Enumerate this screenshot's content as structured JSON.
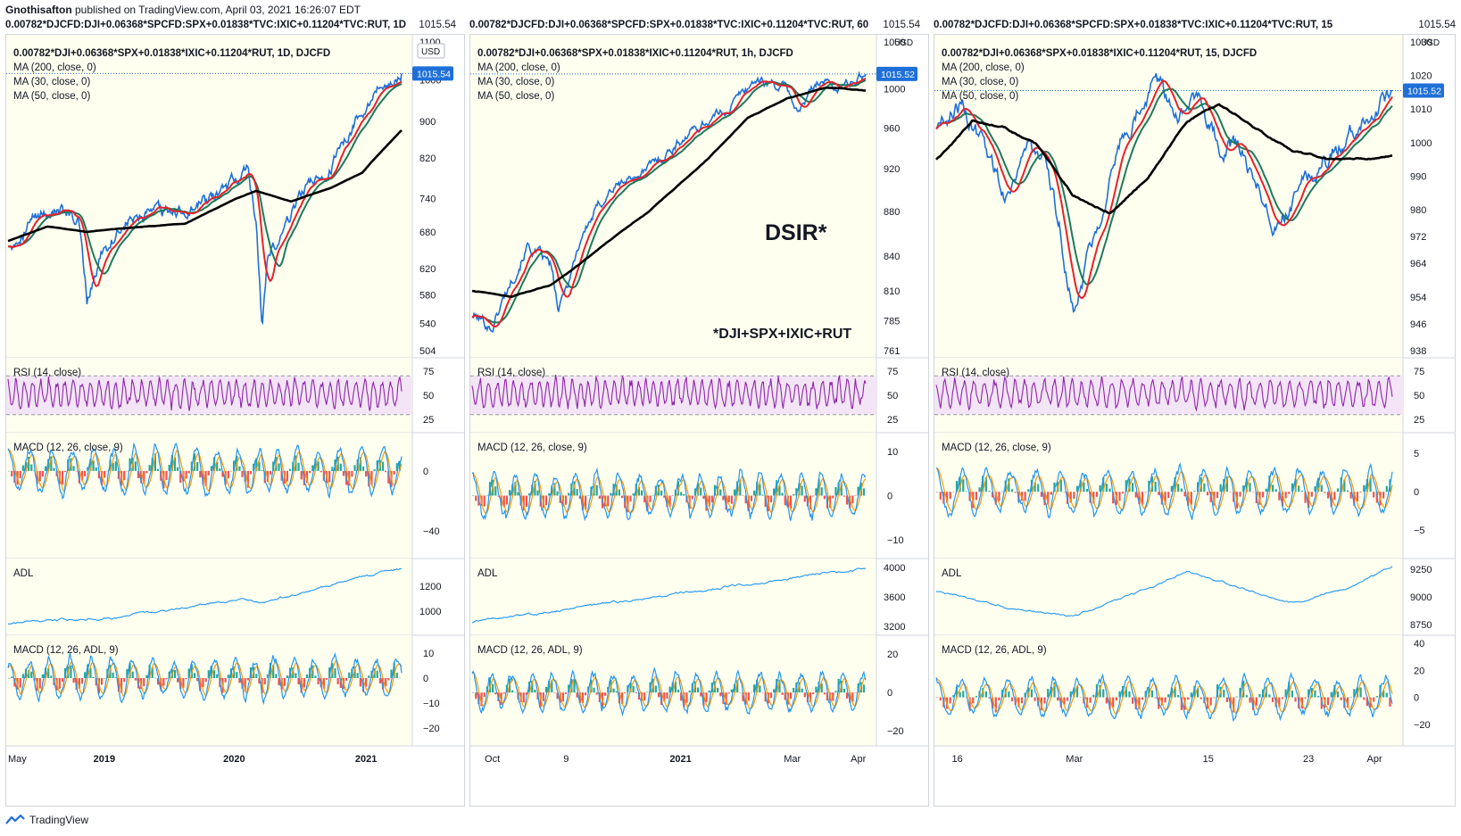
{
  "publisher": {
    "author": "Gnothisafton",
    "text": "published on TradingView.com, April 03, 2021 16:26:07 EDT"
  },
  "footer": {
    "brand": "TradingView"
  },
  "colors": {
    "pane_bg": "#fffff0",
    "rsi_band": "#f3e5f5",
    "price": "#1e6fd9",
    "ma30": "#e8202a",
    "ma50": "#1b7a5a",
    "ma200": "#000000",
    "rsi": "#8e24aa",
    "macd": "#2196f3",
    "signal": "#ff9800",
    "hist_up": "#26a69a",
    "hist_down": "#ef5350",
    "label_bg": "#1e6fd9"
  },
  "panels": [
    {
      "header": "0.00782*DJCFD:DJI+0.06368*SPCFD:SPX+0.01838*TVC:IXIC+0.11204*TVC:RUT, 1D",
      "header_price": "1015.54",
      "title": "0.00782*DJI+0.06368*SPX+0.01838*IXIC+0.11204*RUT, 1D, DJCFD",
      "ma_labels": [
        "MA (200, close, 0)",
        "MA (30, close, 0)",
        "MA (50, close, 0)"
      ],
      "currency": "USD",
      "last_price": "1015.54",
      "overlay_big": "",
      "overlay_small": "",
      "price_ticks": [
        "1100",
        "1000",
        "900",
        "820",
        "740",
        "680",
        "620",
        "580",
        "540",
        "504"
      ],
      "rsi_label": "RSI (14, close)",
      "rsi_ticks": [
        "75",
        "50",
        "25"
      ],
      "macd_label": "MACD (12, 26, close, 9)",
      "macd_ticks": [
        "0",
        "−40"
      ],
      "adl_label": "ADL",
      "adl_ticks": [
        "1200",
        "1000"
      ],
      "macd_adl_label": "MACD (12, 26, ADL, 9)",
      "macd_adl_ticks": [
        "10",
        "0",
        "−10",
        "−20"
      ],
      "time_ticks": [
        "May",
        "2019",
        "2020",
        "2021"
      ]
    },
    {
      "header": "0.00782*DJCFD:DJI+0.06368*SPCFD:SPX+0.01838*TVC:IXIC+0.11204*TVC:RUT, 60",
      "header_price": "1015.54",
      "title": "0.00782*DJI+0.06368*SPX+0.01838*IXIC+0.11204*RUT, 1h, DJCFD",
      "ma_labels": [
        "MA (200, close, 0)",
        "MA (30, close, 0)",
        "MA (50, close, 0)"
      ],
      "currency": "USD",
      "last_price": "1015.52",
      "overlay_big": "DSIR*",
      "overlay_small": "*DJI+SPX+IXIC+RUT",
      "price_ticks": [
        "1050",
        "1000",
        "960",
        "920",
        "880",
        "840",
        "810",
        "785",
        "761"
      ],
      "rsi_label": "RSI (14, close)",
      "rsi_ticks": [
        "75",
        "50",
        "25"
      ],
      "macd_label": "MACD (12, 26, close, 9)",
      "macd_ticks": [
        "10",
        "0",
        "−10"
      ],
      "adl_label": "ADL",
      "adl_ticks": [
        "4000",
        "3600",
        "3200"
      ],
      "macd_adl_label": "MACD (12, 26, ADL, 9)",
      "macd_adl_ticks": [
        "20",
        "0",
        "−20"
      ],
      "time_ticks": [
        "Oct",
        "9",
        "2021",
        "Mar",
        "Apr"
      ]
    },
    {
      "header": "0.00782*DJCFD:DJI+0.06368*SPCFD:SPX+0.01838*TVC:IXIC+0.11204*TVC:RUT, 15",
      "header_price": "1015.54",
      "title": "0.00782*DJI+0.06368*SPX+0.01838*IXIC+0.11204*RUT, 15, DJCFD",
      "ma_labels": [
        "MA (200, close, 0)",
        "MA (30, close, 0)",
        "MA (50, close, 0)"
      ],
      "currency": "USD",
      "last_price": "1015.52",
      "overlay_big": "",
      "overlay_small": "",
      "price_ticks": [
        "1030",
        "1020",
        "1010",
        "1000",
        "990",
        "980",
        "972",
        "964",
        "954",
        "946",
        "938"
      ],
      "rsi_label": "RSI (14, close)",
      "rsi_ticks": [
        "75",
        "50",
        "25"
      ],
      "macd_label": "MACD (12, 26, close, 9)",
      "macd_ticks": [
        "5",
        "0",
        "−5"
      ],
      "adl_label": "ADL",
      "adl_ticks": [
        "9250",
        "9000",
        "8750"
      ],
      "macd_adl_label": "MACD (12, 26, ADL, 9)",
      "macd_adl_ticks": [
        "40",
        "20",
        "0",
        "−20"
      ],
      "time_ticks": [
        "16",
        "Mar",
        "15",
        "23",
        "Apr"
      ]
    }
  ],
  "chart_data": [
    {
      "type": "line",
      "title": "0.00782*DJI+0.06368*SPX+0.01838*IXIC+0.11204*RUT, 1D, DJCFD",
      "timeframe": "1D",
      "x_ticks": [
        "May",
        "2019",
        "2020",
        "2021"
      ],
      "ylim": [
        504,
        1100
      ],
      "scale": "log",
      "series": [
        {
          "name": "MA (200, close, 0)",
          "key_points": [
            [
              0,
              670
            ],
            [
              0.15,
              690
            ],
            [
              0.4,
              700
            ],
            [
              0.6,
              760
            ],
            [
              0.75,
              760
            ],
            [
              0.88,
              800
            ],
            [
              1.0,
              880
            ]
          ]
        },
        {
          "name": "MA (30, close, 0)",
          "key_points": [
            [
              0,
              650
            ],
            [
              0.15,
              720
            ],
            [
              0.25,
              640
            ],
            [
              0.5,
              720
            ],
            [
              0.6,
              800
            ],
            [
              0.67,
              600
            ],
            [
              0.8,
              760
            ],
            [
              0.9,
              900
            ],
            [
              1.0,
              1000
            ]
          ]
        },
        {
          "name": "MA (50, close, 0)",
          "key_points": [
            [
              0,
              645
            ],
            [
              0.15,
              715
            ],
            [
              0.27,
              660
            ],
            [
              0.5,
              715
            ],
            [
              0.6,
              790
            ],
            [
              0.7,
              640
            ],
            [
              0.8,
              740
            ],
            [
              0.9,
              880
            ],
            [
              1.0,
              990
            ]
          ]
        }
      ],
      "last_value": 1015.54
    },
    {
      "type": "line",
      "title": "0.00782*DJI+0.06368*SPX+0.01838*IXIC+0.11204*RUT, 1h, DJCFD",
      "timeframe": "1h",
      "x_ticks": [
        "Oct",
        "9",
        "2021",
        "Mar",
        "Apr"
      ],
      "ylim": [
        761,
        1050
      ],
      "scale": "log",
      "last_value": 1015.52
    },
    {
      "type": "line",
      "title": "0.00782*DJI+0.06368*SPX+0.01838*IXIC+0.11204*RUT, 15, DJCFD",
      "timeframe": "15",
      "x_ticks": [
        "16",
        "Mar",
        "15",
        "23",
        "Apr"
      ],
      "ylim": [
        938,
        1030
      ],
      "last_value": 1015.52
    }
  ]
}
